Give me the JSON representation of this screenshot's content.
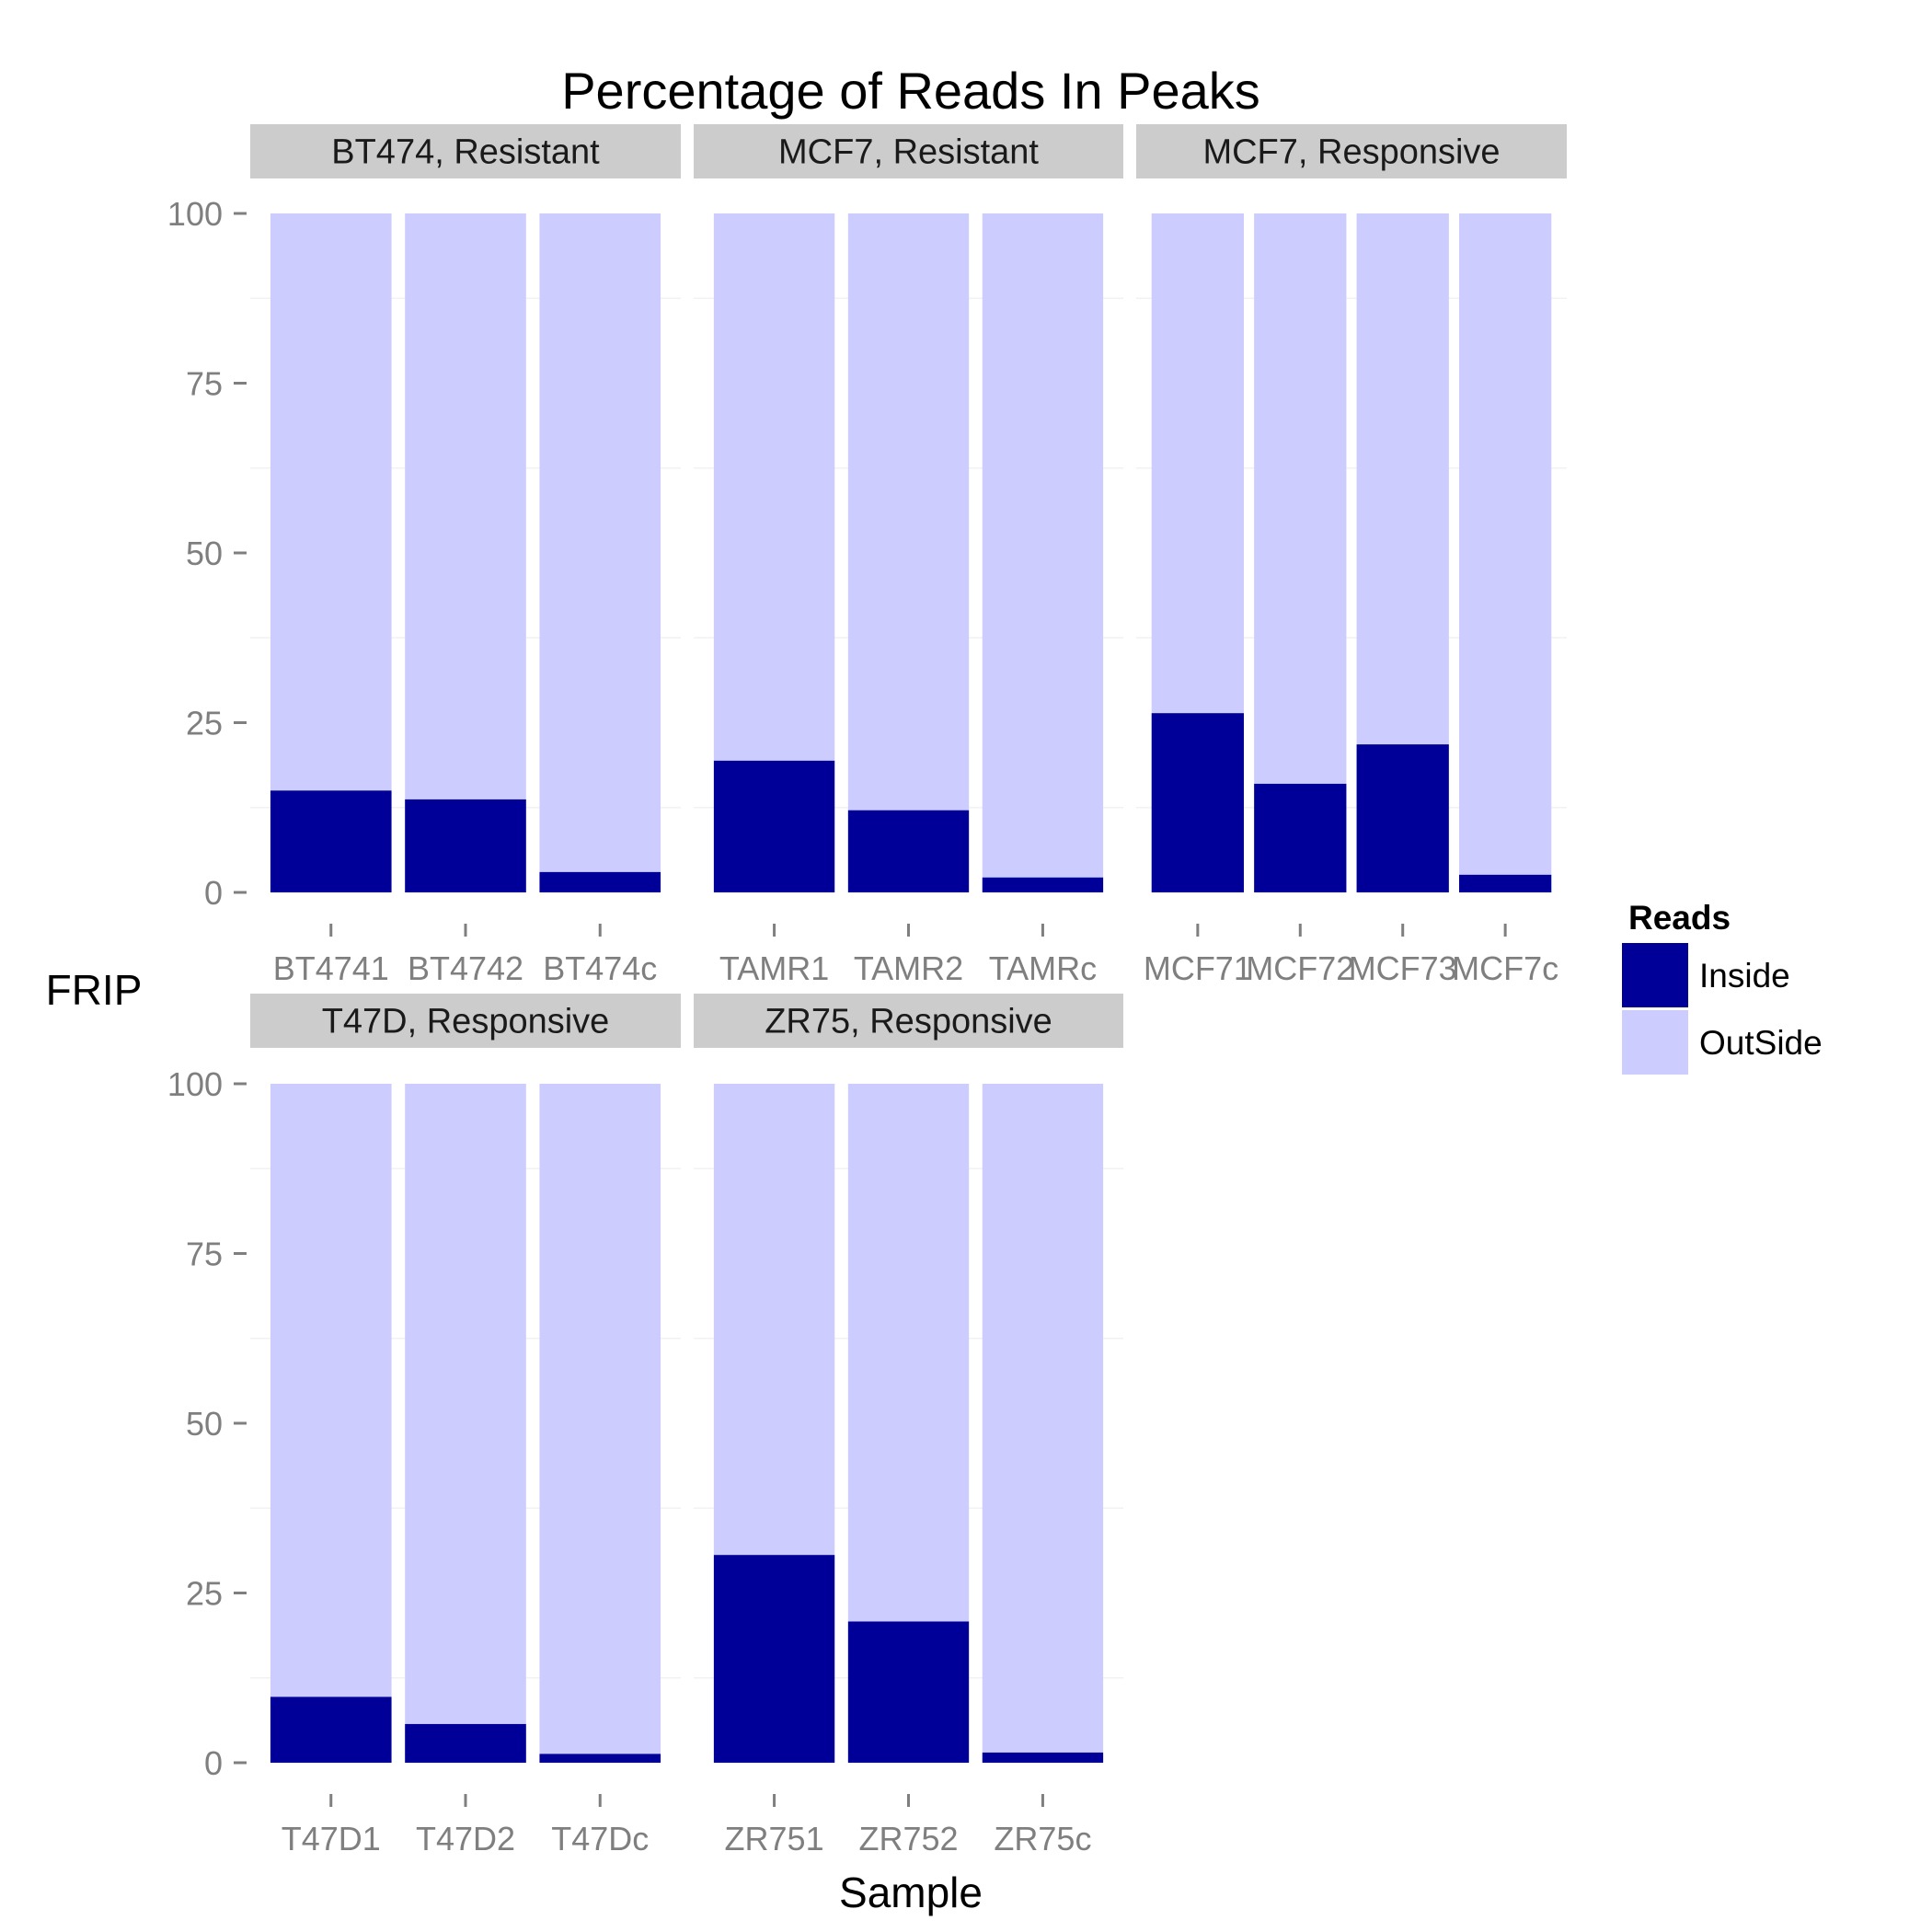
{
  "chart_data": {
    "type": "bar",
    "stacked": true,
    "title": "Percentage of Reads In Peaks",
    "xlabel": "Sample",
    "ylabel": "FRIP",
    "ylim": [
      0,
      100
    ],
    "yticks": [
      0,
      25,
      50,
      75,
      100
    ],
    "legend": {
      "title": "Reads",
      "placement": "right",
      "entries": [
        {
          "label": "Inside",
          "color": "#000099"
        },
        {
          "label": "OutSide",
          "color": "#ccccff"
        }
      ]
    },
    "facets": [
      {
        "label": "BT474, Resistant",
        "categories": [
          "BT4741",
          "BT4742",
          "BT474c"
        ],
        "series": [
          {
            "name": "Inside",
            "values": [
              15.0,
              13.7,
              3.0
            ]
          },
          {
            "name": "OutSide",
            "values": [
              85.0,
              86.3,
              97.0
            ]
          }
        ]
      },
      {
        "label": "MCF7, Resistant",
        "categories": [
          "TAMR1",
          "TAMR2",
          "TAMRc"
        ],
        "series": [
          {
            "name": "Inside",
            "values": [
              19.4,
              12.1,
              2.2
            ]
          },
          {
            "name": "OutSide",
            "values": [
              80.6,
              87.9,
              97.8
            ]
          }
        ]
      },
      {
        "label": "MCF7, Responsive",
        "categories": [
          "MCF71",
          "MCF72",
          "MCF73",
          "MCF7c"
        ],
        "series": [
          {
            "name": "Inside",
            "values": [
              26.4,
              16.0,
              21.8,
              2.6
            ]
          },
          {
            "name": "OutSide",
            "values": [
              73.6,
              84.0,
              78.2,
              97.4
            ]
          }
        ]
      },
      {
        "label": "T47D, Responsive",
        "categories": [
          "T47D1",
          "T47D2",
          "T47Dc"
        ],
        "series": [
          {
            "name": "Inside",
            "values": [
              9.7,
              5.7,
              1.3
            ]
          },
          {
            "name": "OutSide",
            "values": [
              90.3,
              94.3,
              98.7
            ]
          }
        ]
      },
      {
        "label": "ZR75, Responsive",
        "categories": [
          "ZR751",
          "ZR752",
          "ZR75c"
        ],
        "series": [
          {
            "name": "Inside",
            "values": [
              30.6,
              20.8,
              1.5
            ]
          },
          {
            "name": "OutSide",
            "values": [
              69.4,
              79.2,
              98.5
            ]
          }
        ]
      }
    ]
  }
}
